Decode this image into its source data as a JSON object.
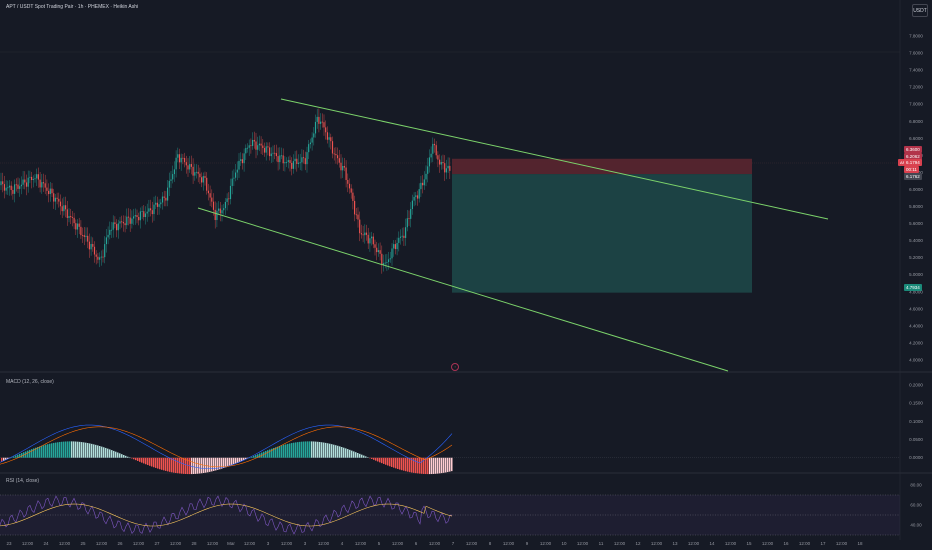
{
  "header": {
    "title": "APT / USDT Spot Trading Pair · 1h · PHEMEX · Heikin Ashi",
    "currency_button": "USDT"
  },
  "price_axis": {
    "labels": [
      "7.8000",
      "7.6000",
      "7.4000",
      "7.2000",
      "7.0000",
      "6.8000",
      "6.6000",
      "6.4000",
      "6.2000",
      "6.0000",
      "5.8000",
      "5.6000",
      "5.4000",
      "5.2000",
      "5.0000",
      "4.8000",
      "4.6000",
      "4.4000",
      "4.2000",
      "4.0000"
    ],
    "tags": {
      "stop": "6.3600",
      "stop2": "6.2062",
      "symbol": "APTUSDT",
      "current": "6.1794",
      "countdown": "00:11",
      "entry": "6.1762",
      "target": "4.7934"
    }
  },
  "time_axis": {
    "labels": [
      "23",
      "12:00",
      "24",
      "12:00",
      "25",
      "12:00",
      "26",
      "12:00",
      "27",
      "12:00",
      "28",
      "12:00",
      "Mar",
      "12:00",
      "3",
      "12:00",
      "3",
      "12:00",
      "4",
      "12:00",
      "5",
      "12:00",
      "6",
      "12:00",
      "7",
      "12:00",
      "8",
      "12:00",
      "9",
      "12:00",
      "10",
      "12:00",
      "11",
      "12:00",
      "12",
      "12:00",
      "13",
      "12:00",
      "14",
      "12:00",
      "15",
      "12:00",
      "16",
      "12:00",
      "17",
      "12:00",
      "18"
    ]
  },
  "macd": {
    "label": "MACD (12, 26, close)",
    "axis": [
      "0.2000",
      "0.1500",
      "0.1000",
      "0.0500",
      "0.0000"
    ]
  },
  "rsi": {
    "label": "RSI (14, close)",
    "axis": [
      "80.00",
      "60.00",
      "40.00"
    ]
  },
  "colors": {
    "background": "#161a25",
    "up": "#26a69a",
    "down": "#ef5350",
    "channel": "#7cd36b",
    "target_zone": "#1d4a4a",
    "stop_zone": "#5a2630",
    "macd_line": "#2962ff",
    "signal_line": "#ff6d00",
    "rsi_line": "#7e57c2",
    "rsi_ma": "#f7c55b"
  }
}
